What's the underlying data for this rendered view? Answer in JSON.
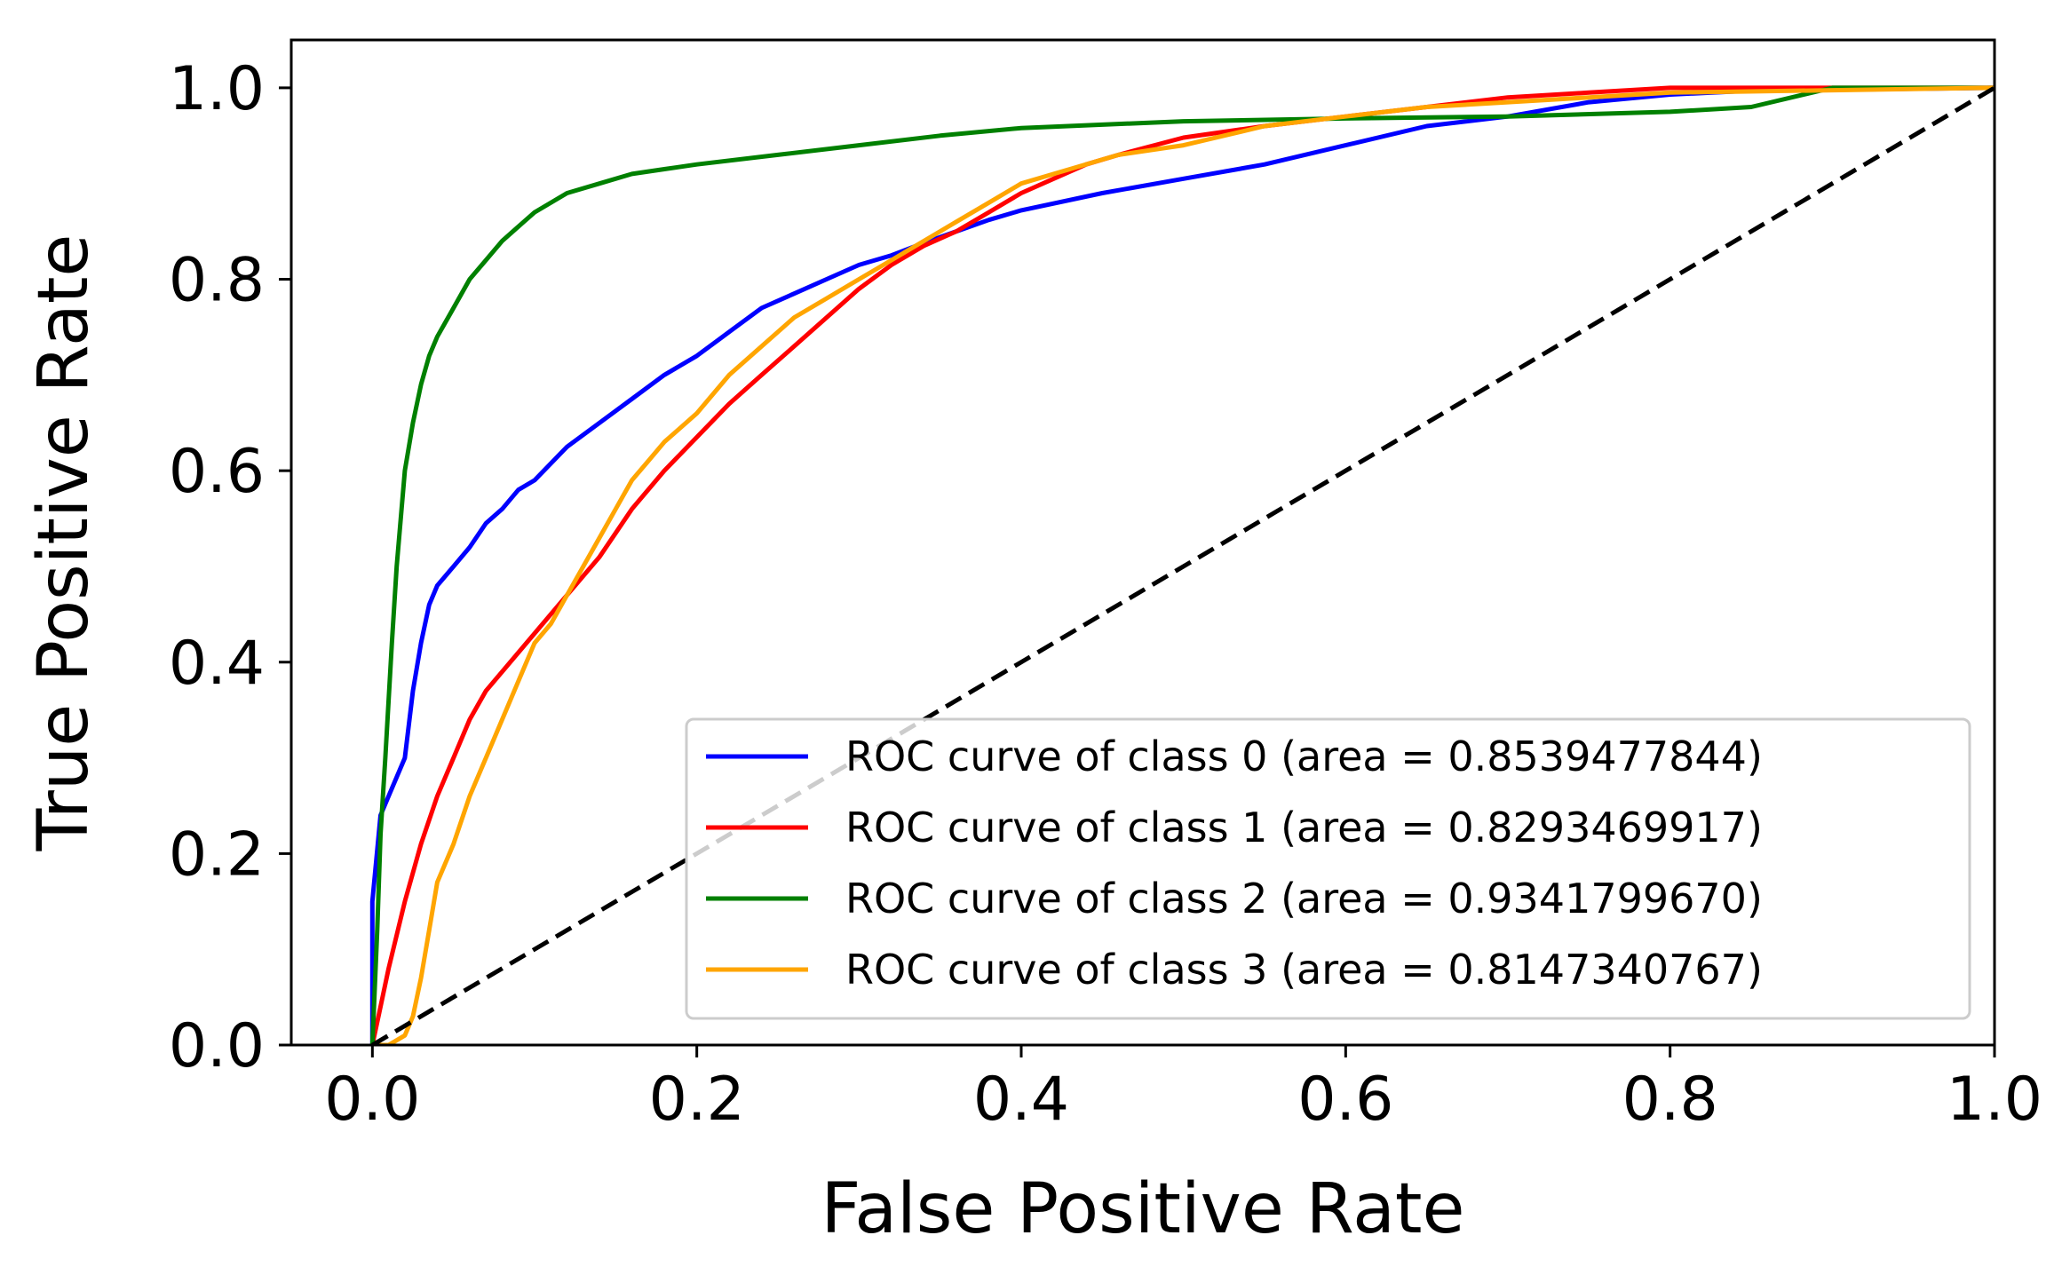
{
  "chart_data": {
    "type": "line",
    "title": "",
    "xlabel": "False Positive Rate",
    "ylabel": "True Positive Rate",
    "xlim": [
      -0.05,
      1.0
    ],
    "ylim": [
      0.0,
      1.05
    ],
    "xticks": [
      0.0,
      0.2,
      0.4,
      0.6,
      0.8,
      1.0
    ],
    "xtick_labels": [
      "0.0",
      "0.2",
      "0.4",
      "0.6",
      "0.8",
      "1.0"
    ],
    "yticks": [
      0.0,
      0.2,
      0.4,
      0.6,
      0.8,
      1.0
    ],
    "ytick_labels": [
      "0.0",
      "0.2",
      "0.4",
      "0.6",
      "0.8",
      "1.0"
    ],
    "grid": false,
    "legend_position": "bottom-right",
    "series": [
      {
        "name": "ROC curve of class 0 (area = 0.8539477844)",
        "color": "#0000ff",
        "x": [
          0.0,
          0.0,
          0.005,
          0.01,
          0.02,
          0.025,
          0.03,
          0.035,
          0.04,
          0.05,
          0.06,
          0.07,
          0.08,
          0.09,
          0.1,
          0.12,
          0.14,
          0.16,
          0.18,
          0.2,
          0.22,
          0.24,
          0.26,
          0.28,
          0.3,
          0.32,
          0.34,
          0.36,
          0.38,
          0.4,
          0.45,
          0.5,
          0.55,
          0.6,
          0.65,
          0.7,
          0.75,
          0.8,
          0.85,
          0.9,
          0.95,
          1.0
        ],
        "y": [
          0.0,
          0.15,
          0.24,
          0.26,
          0.3,
          0.37,
          0.42,
          0.46,
          0.48,
          0.5,
          0.52,
          0.545,
          0.56,
          0.58,
          0.59,
          0.625,
          0.65,
          0.675,
          0.7,
          0.72,
          0.745,
          0.77,
          0.785,
          0.8,
          0.815,
          0.825,
          0.838,
          0.85,
          0.862,
          0.872,
          0.89,
          0.905,
          0.92,
          0.94,
          0.96,
          0.97,
          0.985,
          0.993,
          0.997,
          0.998,
          0.999,
          1.0
        ]
      },
      {
        "name": "ROC curve of class 1 (area = 0.8293469917)",
        "color": "#ff0000",
        "x": [
          0.0,
          0.005,
          0.01,
          0.02,
          0.03,
          0.04,
          0.05,
          0.06,
          0.07,
          0.08,
          0.1,
          0.12,
          0.14,
          0.16,
          0.18,
          0.2,
          0.22,
          0.24,
          0.26,
          0.28,
          0.3,
          0.32,
          0.34,
          0.36,
          0.38,
          0.4,
          0.42,
          0.44,
          0.46,
          0.5,
          0.55,
          0.6,
          0.65,
          0.7,
          0.75,
          0.8,
          1.0
        ],
        "y": [
          0.0,
          0.04,
          0.08,
          0.15,
          0.21,
          0.26,
          0.3,
          0.34,
          0.37,
          0.39,
          0.43,
          0.47,
          0.51,
          0.56,
          0.6,
          0.635,
          0.67,
          0.7,
          0.73,
          0.76,
          0.79,
          0.815,
          0.835,
          0.85,
          0.87,
          0.89,
          0.905,
          0.92,
          0.93,
          0.948,
          0.96,
          0.97,
          0.98,
          0.99,
          0.995,
          1.0,
          1.0
        ]
      },
      {
        "name": "ROC curve of class 2 (area = 0.9341799670)",
        "color": "#008000",
        "x": [
          0.0,
          0.003,
          0.005,
          0.008,
          0.01,
          0.012,
          0.015,
          0.018,
          0.02,
          0.025,
          0.03,
          0.035,
          0.04,
          0.05,
          0.06,
          0.07,
          0.08,
          0.09,
          0.1,
          0.12,
          0.14,
          0.16,
          0.18,
          0.2,
          0.25,
          0.3,
          0.35,
          0.4,
          0.5,
          0.6,
          0.7,
          0.8,
          0.85,
          0.9,
          0.95,
          1.0
        ],
        "y": [
          0.0,
          0.12,
          0.22,
          0.3,
          0.36,
          0.42,
          0.5,
          0.56,
          0.6,
          0.65,
          0.69,
          0.72,
          0.74,
          0.77,
          0.8,
          0.82,
          0.84,
          0.855,
          0.87,
          0.89,
          0.9,
          0.91,
          0.915,
          0.92,
          0.93,
          0.94,
          0.95,
          0.958,
          0.965,
          0.968,
          0.97,
          0.975,
          0.98,
          1.0,
          1.0,
          1.0
        ]
      },
      {
        "name": "ROC curve of class 3 (area = 0.8147340767)",
        "color": "#ffa500",
        "x": [
          0.0,
          0.01,
          0.02,
          0.025,
          0.03,
          0.035,
          0.04,
          0.05,
          0.06,
          0.07,
          0.08,
          0.09,
          0.1,
          0.11,
          0.12,
          0.13,
          0.14,
          0.15,
          0.16,
          0.17,
          0.18,
          0.2,
          0.22,
          0.24,
          0.26,
          0.28,
          0.3,
          0.32,
          0.34,
          0.36,
          0.38,
          0.4,
          0.42,
          0.46,
          0.5,
          0.55,
          0.6,
          0.65,
          0.7,
          0.75,
          0.8,
          1.0
        ],
        "y": [
          0.0,
          0.0,
          0.01,
          0.03,
          0.07,
          0.12,
          0.17,
          0.21,
          0.26,
          0.3,
          0.34,
          0.38,
          0.42,
          0.44,
          0.47,
          0.5,
          0.53,
          0.56,
          0.59,
          0.61,
          0.63,
          0.66,
          0.7,
          0.73,
          0.76,
          0.78,
          0.8,
          0.82,
          0.84,
          0.86,
          0.88,
          0.9,
          0.91,
          0.93,
          0.94,
          0.96,
          0.97,
          0.98,
          0.985,
          0.99,
          0.995,
          1.0
        ]
      },
      {
        "name": "chance",
        "color": "#000000",
        "dashed": true,
        "show_in_legend": false,
        "x": [
          0.0,
          1.0
        ],
        "y": [
          0.0,
          1.0
        ]
      }
    ]
  }
}
